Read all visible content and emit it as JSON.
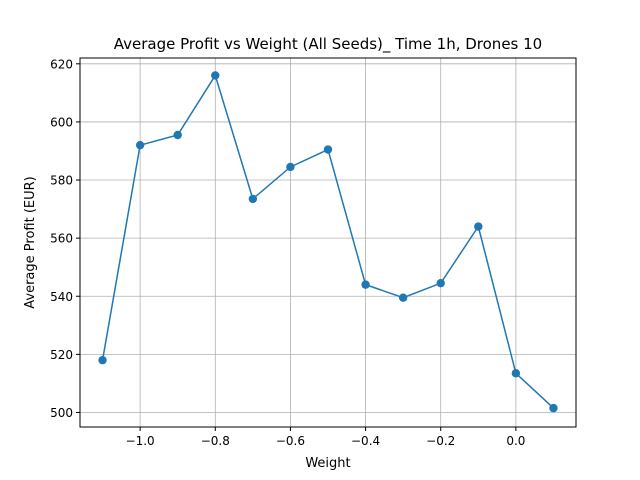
{
  "chart_data": {
    "type": "line",
    "title": "Average Profit vs Weight (All Seeds)_ Time 1h, Drones 10",
    "xlabel": "Weight",
    "ylabel": "Average Profit (EUR)",
    "xlim": [
      -1.16,
      0.16
    ],
    "ylim": [
      495,
      622
    ],
    "xticks": [
      -1.0,
      -0.8,
      -0.6,
      -0.4,
      -0.2,
      0.0
    ],
    "xtick_labels": [
      "−1.0",
      "−0.8",
      "−0.6",
      "−0.4",
      "−0.2",
      "0.0"
    ],
    "yticks": [
      500,
      520,
      540,
      560,
      580,
      600,
      620
    ],
    "ytick_labels": [
      "500",
      "520",
      "540",
      "560",
      "580",
      "600",
      "620"
    ],
    "grid": true,
    "series": [
      {
        "color": "#1f77b4",
        "x": [
          -1.1,
          -1.0,
          -0.9,
          -0.8,
          -0.7,
          -0.6,
          -0.5,
          -0.4,
          -0.3,
          -0.2,
          -0.1,
          0.0,
          0.1
        ],
        "y": [
          518,
          592,
          595.5,
          616,
          573.5,
          584.5,
          590.5,
          544,
          539.5,
          544.5,
          564,
          513.5,
          501.5
        ]
      }
    ]
  }
}
